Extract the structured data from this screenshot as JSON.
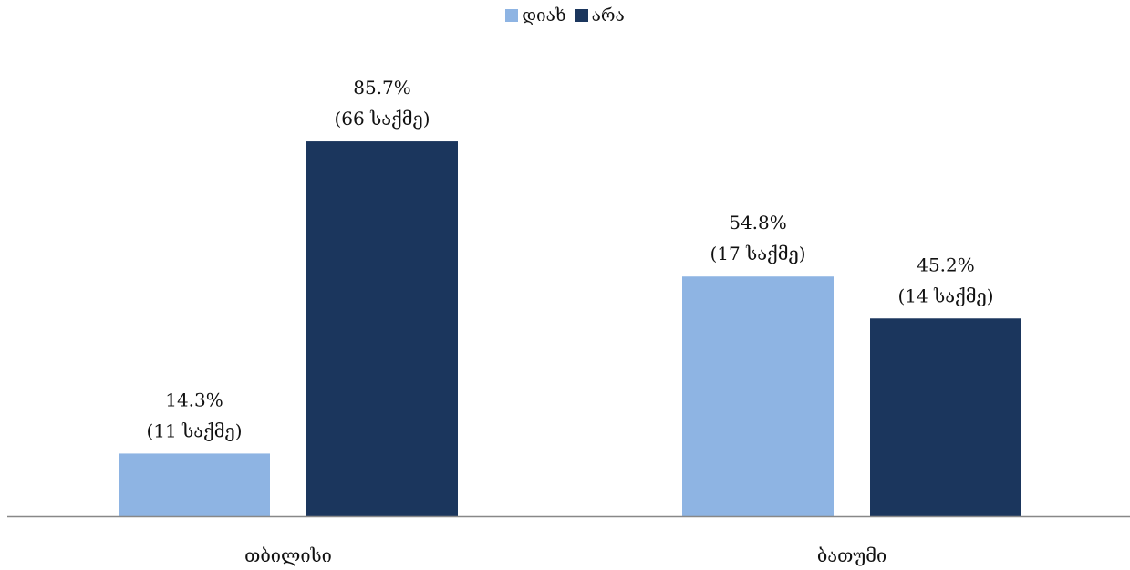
{
  "chart_data": {
    "type": "bar",
    "categories": [
      "თბილისი",
      "ბათუმი"
    ],
    "series": [
      {
        "name": "დიახ",
        "color": "#8eb4e3",
        "values": [
          14.3,
          54.8
        ],
        "labels": [
          "14.3%",
          "54.8%"
        ],
        "cases": [
          "(11 საქმე)",
          "(17 საქმე)"
        ]
      },
      {
        "name": "არა",
        "color": "#1b365d",
        "values": [
          85.7,
          45.2
        ],
        "labels": [
          "85.7%",
          "45.2%"
        ],
        "cases": [
          "(66 საქმე)",
          "(14 საქმე)"
        ]
      }
    ],
    "ylim": [
      0,
      100
    ],
    "grid": false,
    "legend": "top-center"
  }
}
